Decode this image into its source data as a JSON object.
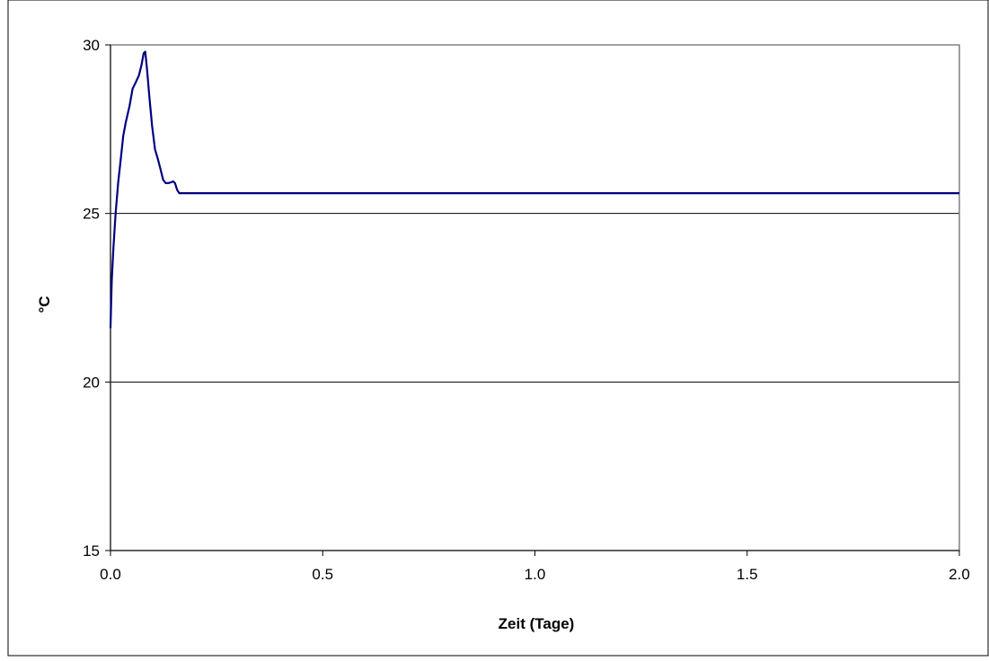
{
  "chart_data": {
    "type": "line",
    "title": "",
    "xlabel": "Zeit (Tage)",
    "ylabel": "°C",
    "xlim": [
      0,
      2
    ],
    "ylim": [
      15,
      30
    ],
    "x_ticks": [
      "0.0",
      "0.5",
      "1.0",
      "1.5",
      "2.0"
    ],
    "y_ticks": [
      "15",
      "20",
      "25",
      "30"
    ],
    "grid": "horizontal",
    "legend": "none",
    "series": [
      {
        "name": "",
        "color": "#000080",
        "points": [
          [
            0.0,
            21.6
          ],
          [
            0.003,
            23.0
          ],
          [
            0.007,
            24.0
          ],
          [
            0.012,
            25.0
          ],
          [
            0.018,
            25.9
          ],
          [
            0.025,
            26.7
          ],
          [
            0.03,
            27.3
          ],
          [
            0.036,
            27.7
          ],
          [
            0.045,
            28.2
          ],
          [
            0.052,
            28.7
          ],
          [
            0.06,
            28.9
          ],
          [
            0.067,
            29.1
          ],
          [
            0.073,
            29.4
          ],
          [
            0.078,
            29.75
          ],
          [
            0.082,
            29.8
          ],
          [
            0.086,
            29.3
          ],
          [
            0.092,
            28.4
          ],
          [
            0.098,
            27.6
          ],
          [
            0.105,
            26.9
          ],
          [
            0.112,
            26.6
          ],
          [
            0.118,
            26.3
          ],
          [
            0.124,
            26.0
          ],
          [
            0.13,
            25.9
          ],
          [
            0.136,
            25.9
          ],
          [
            0.142,
            25.92
          ],
          [
            0.148,
            25.95
          ],
          [
            0.152,
            25.9
          ],
          [
            0.157,
            25.7
          ],
          [
            0.162,
            25.6
          ],
          [
            0.17,
            25.6
          ],
          [
            0.5,
            25.6
          ],
          [
            1.0,
            25.6
          ],
          [
            1.5,
            25.6
          ],
          [
            2.0,
            25.6
          ]
        ]
      }
    ]
  }
}
